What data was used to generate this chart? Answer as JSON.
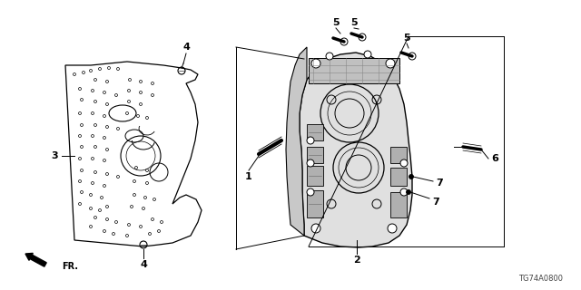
{
  "background_color": "#ffffff",
  "part_code": "TG74A0800",
  "fr_label": "FR.",
  "line_color": "#000000",
  "gray_plate": "#e8e8e8",
  "gray_vb": "#d8d8d8"
}
